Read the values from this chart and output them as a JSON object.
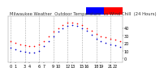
{
  "title": "Milwaukee Weather  Outdoor Temperature",
  "subtitle": "vs Wind Chill  (24 Hours)",
  "bg_color": "#ffffff",
  "plot_bg": "#ffffff",
  "grid_color": "#aaaaaa",
  "temp_color": "#ff0000",
  "windchill_color": "#0000cc",
  "legend_bar_blue": "#0000ff",
  "legend_bar_red": "#ff0000",
  "hours": [
    0,
    1,
    2,
    3,
    4,
    5,
    6,
    7,
    8,
    9,
    10,
    11,
    12,
    13,
    14,
    15,
    16,
    17,
    18,
    19,
    20,
    21,
    22,
    23
  ],
  "temp": [
    22,
    20,
    18,
    17,
    16,
    16,
    18,
    23,
    29,
    35,
    40,
    44,
    47,
    47,
    46,
    44,
    40,
    36,
    32,
    29,
    28,
    26,
    25,
    23
  ],
  "windchill": [
    14,
    12,
    10,
    9,
    8,
    8,
    10,
    16,
    23,
    29,
    35,
    39,
    43,
    44,
    43,
    40,
    36,
    31,
    26,
    22,
    20,
    18,
    17,
    15
  ],
  "ylim": [
    -5,
    55
  ],
  "ytick_vals": [
    0,
    10,
    20,
    30,
    40
  ],
  "xlim": [
    -0.5,
    23.5
  ],
  "grid_x_positions": [
    0,
    3,
    6,
    9,
    12,
    15,
    18,
    21
  ],
  "xtick_positions": [
    0,
    1,
    3,
    4,
    6,
    7,
    9,
    10,
    12,
    13,
    15,
    16,
    18,
    19,
    21,
    22
  ],
  "xtick_labels": [
    "0",
    "1",
    "3",
    "4",
    "6",
    "7",
    "9",
    "10",
    "12",
    "13",
    "15",
    "16",
    "18",
    "19",
    "21",
    "22"
  ],
  "xlabel_fontsize": 3.5,
  "ylabel_fontsize": 3.5,
  "title_fontsize": 3.8,
  "marker_size": 1.2
}
